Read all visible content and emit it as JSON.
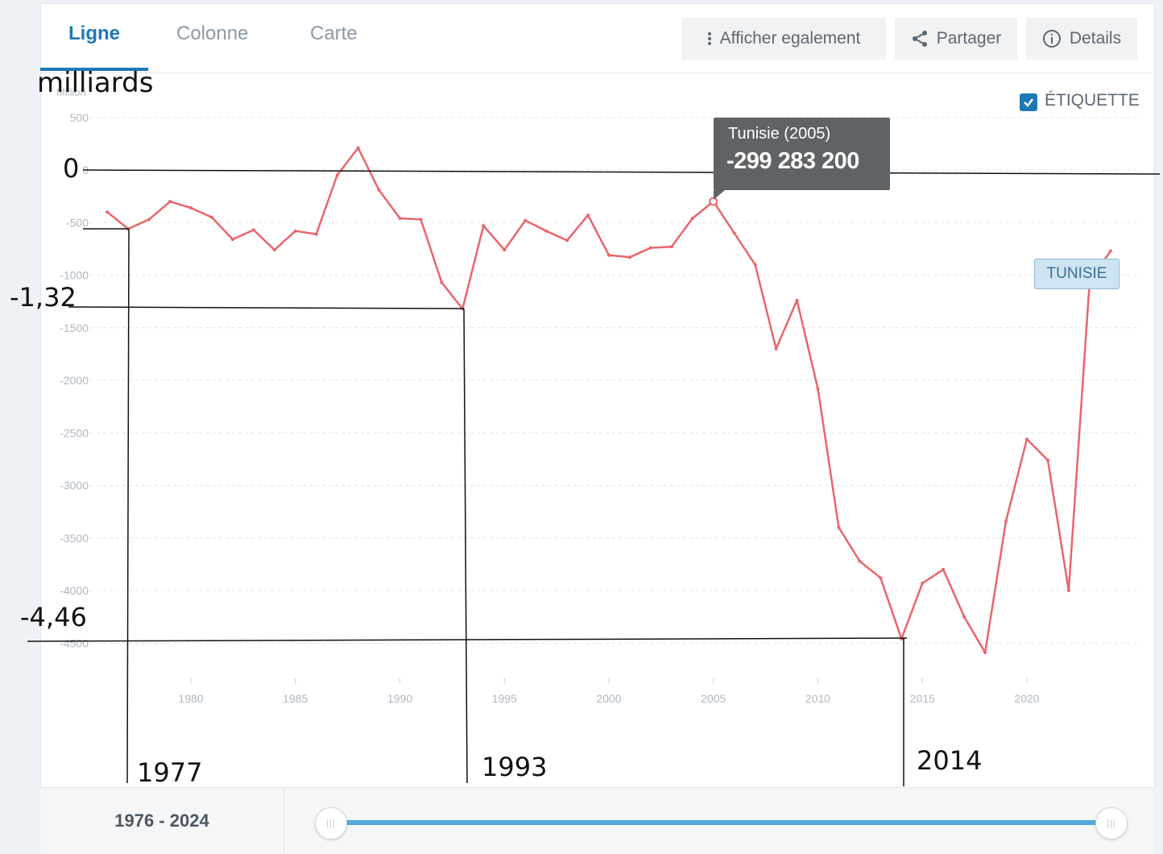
{
  "tabs": [
    {
      "label": "Ligne",
      "active": true
    },
    {
      "label": "Colonne",
      "active": false
    },
    {
      "label": "Carte",
      "active": false
    }
  ],
  "toolbar": {
    "show_also": "Afficher egalement",
    "share": "Partager",
    "details": "Details"
  },
  "legend": {
    "checkbox_label": "ÉTIQUETTE",
    "checked": true
  },
  "series_tag": "TUNISIE",
  "tooltip": {
    "title": "Tunisie (2005)",
    "value": "-299 283 200"
  },
  "footer": {
    "range": "1976 - 2024"
  },
  "annotations": {
    "unit": "milliards",
    "zero": "0",
    "v1": "-1,32",
    "v2": "-4,46",
    "y1977": "1977",
    "y1993": "1993",
    "y2014": "2014"
  },
  "colors": {
    "accent": "#1d78b7",
    "series": "#e8666b",
    "slider": "#52a9e0",
    "tooltip_bg": "#5f6366"
  },
  "chart_data": {
    "type": "line",
    "ylabel": "Million",
    "ylim": [
      -4500,
      500
    ],
    "y_ticks": [
      500,
      0,
      -500,
      -1000,
      -1500,
      -2000,
      -2500,
      -3000,
      -3500,
      -4000,
      -4500
    ],
    "x_ticks": [
      1980,
      1985,
      1990,
      1995,
      2000,
      2005,
      2010,
      2015,
      2020
    ],
    "grid": true,
    "series": [
      {
        "name": "Tunisie",
        "x": [
          1976,
          1977,
          1978,
          1979,
          1980,
          1981,
          1982,
          1983,
          1984,
          1985,
          1986,
          1987,
          1988,
          1989,
          1990,
          1991,
          1992,
          1993,
          1994,
          1995,
          1996,
          1997,
          1998,
          1999,
          2000,
          2001,
          2002,
          2003,
          2004,
          2005,
          2006,
          2007,
          2008,
          2009,
          2010,
          2011,
          2012,
          2013,
          2014,
          2015,
          2016,
          2017,
          2018,
          2019,
          2020,
          2021,
          2022,
          2023,
          2024
        ],
        "values": [
          -400,
          -560,
          -470,
          -300,
          -360,
          -450,
          -660,
          -570,
          -760,
          -580,
          -610,
          -50,
          210,
          -190,
          -460,
          -470,
          -1070,
          -1320,
          -530,
          -760,
          -480,
          -580,
          -670,
          -430,
          -810,
          -830,
          -740,
          -730,
          -460,
          -299,
          -600,
          -900,
          -1700,
          -1240,
          -2080,
          -3400,
          -3720,
          -3880,
          -4460,
          -3930,
          -3800,
          -4250,
          -4590,
          -3340,
          -2560,
          -2760,
          -4000,
          -1070,
          -770
        ]
      }
    ]
  }
}
